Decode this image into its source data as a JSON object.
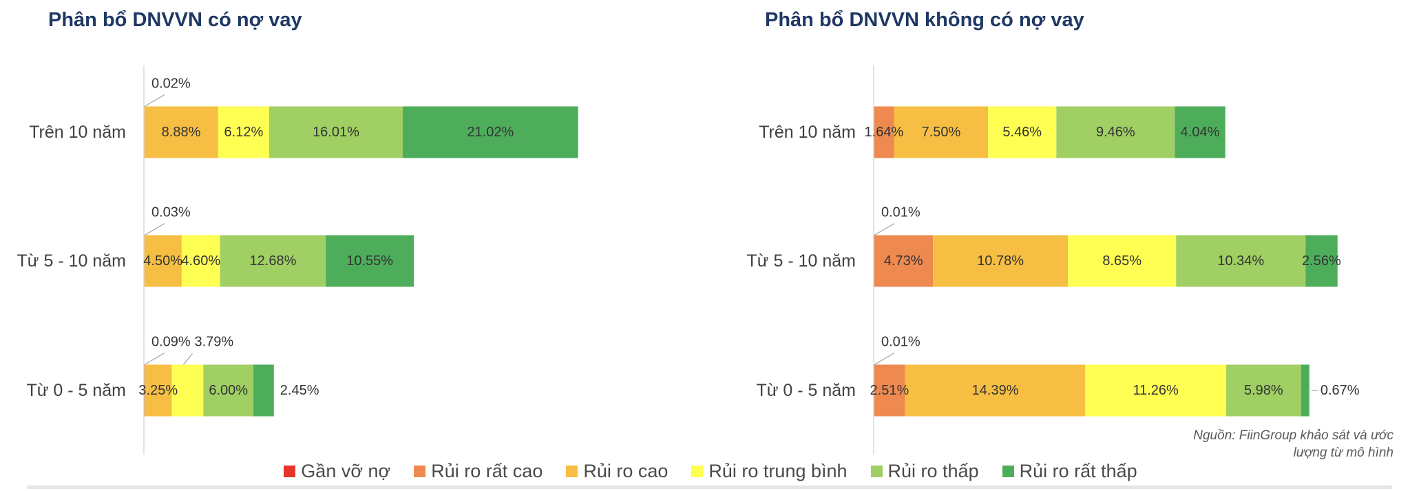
{
  "chart_data": [
    {
      "type": "bar",
      "orientation": "horizontal",
      "stacked": true,
      "title": "Phân bổ DNVVN có nợ vay",
      "categories": [
        "Trên 10 năm",
        "Từ 5 - 10 năm",
        "Từ 0 - 5 năm"
      ],
      "unit": "%",
      "xlim": [
        0,
        60
      ],
      "grid": false,
      "series": [
        {
          "name": "Gần vỡ nợ",
          "values": [
            0.02,
            0.03,
            0.09
          ]
        },
        {
          "name": "Rủi ro rất cao",
          "values": [
            null,
            null,
            null
          ]
        },
        {
          "name": "Rủi ro cao",
          "values": [
            8.88,
            4.5,
            3.25
          ]
        },
        {
          "name": "Rủi ro trung bình",
          "values": [
            6.12,
            4.6,
            3.79
          ]
        },
        {
          "name": "Rủi ro thấp",
          "values": [
            16.01,
            12.68,
            6.0
          ]
        },
        {
          "name": "Rủi ro rất thấp",
          "values": [
            21.02,
            10.55,
            2.45
          ]
        }
      ]
    },
    {
      "type": "bar",
      "orientation": "horizontal",
      "stacked": true,
      "title": "Phân bổ DNVVN không có nợ vay",
      "categories": [
        "Trên 10 năm",
        "Từ 5 - 10 năm",
        "Từ 0 - 5 năm"
      ],
      "unit": "%",
      "xlim": [
        0,
        40
      ],
      "grid": false,
      "series": [
        {
          "name": "Gần vỡ nợ",
          "values": [
            null,
            0.01,
            0.01
          ]
        },
        {
          "name": "Rủi ro rất cao",
          "values": [
            1.64,
            4.73,
            2.51
          ]
        },
        {
          "name": "Rủi ro cao",
          "values": [
            7.5,
            10.78,
            14.39
          ]
        },
        {
          "name": "Rủi ro trung bình",
          "values": [
            5.46,
            8.65,
            11.26
          ]
        },
        {
          "name": "Rủi ro thấp",
          "values": [
            9.46,
            10.34,
            5.98
          ]
        },
        {
          "name": "Rủi ro rất thấp",
          "values": [
            4.04,
            2.56,
            0.67
          ]
        }
      ]
    }
  ],
  "legend": {
    "placement": "bottom",
    "items": [
      {
        "label": "Gần vỡ nợ",
        "color": "#E8352B"
      },
      {
        "label": "Rủi ro rất cao",
        "color": "#EE8A4F"
      },
      {
        "label": "Rủi ro cao",
        "color": "#F6BF43"
      },
      {
        "label": "Rủi ro trung bình",
        "color": "#FEFE53"
      },
      {
        "label": "Rủi ro thấp",
        "color": "#A0CF63"
      },
      {
        "label": "Rủi ro rất thấp",
        "color": "#4EAD5B"
      }
    ]
  },
  "source": "Nguồn: FiinGroup khảo sát và ước lượng từ mô hình"
}
